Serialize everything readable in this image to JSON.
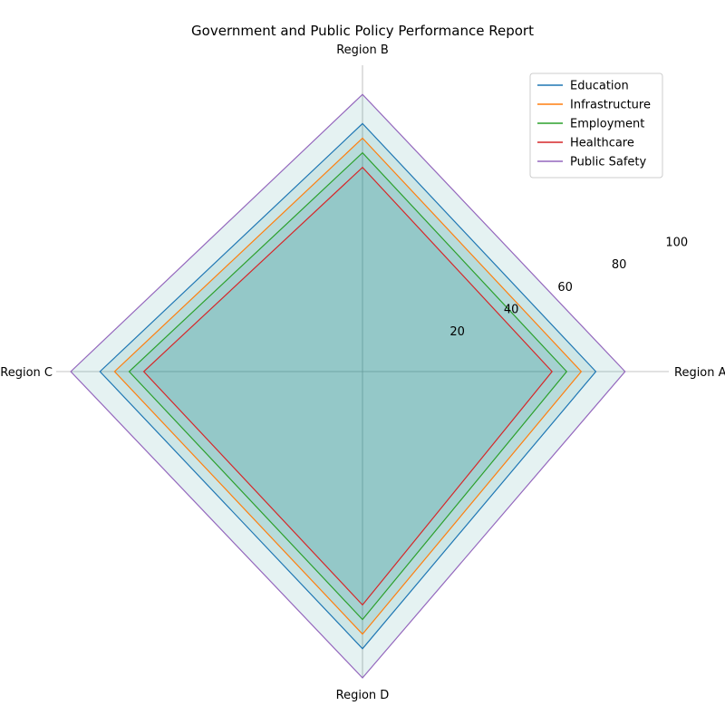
{
  "chart_data": {
    "type": "radar",
    "title": "Government and Public Policy Performance Report",
    "categories": [
      "Region A",
      "Region B",
      "Region C",
      "Region D"
    ],
    "rlim": [
      0,
      105
    ],
    "r_ticks": [
      "20",
      "40",
      "60",
      "80",
      "100"
    ],
    "r_tick_values": [
      20,
      40,
      60,
      80,
      100
    ],
    "grid": true,
    "legend_position": "top-right",
    "series": [
      {
        "name": "Education",
        "values": [
          80,
          85,
          90,
          95
        ],
        "color": "#1f77b4"
      },
      {
        "name": "Infrastructure",
        "values": [
          75,
          80,
          85,
          90
        ],
        "color": "#ff7f0e"
      },
      {
        "name": "Employment",
        "values": [
          70,
          75,
          80,
          85
        ],
        "color": "#2ca02c"
      },
      {
        "name": "Healthcare",
        "values": [
          65,
          70,
          75,
          80
        ],
        "color": "#d62728"
      },
      {
        "name": "Public Safety",
        "values": [
          90,
          95,
          100,
          105
        ],
        "color": "#9467bd"
      }
    ],
    "fill_color": "#008080"
  }
}
